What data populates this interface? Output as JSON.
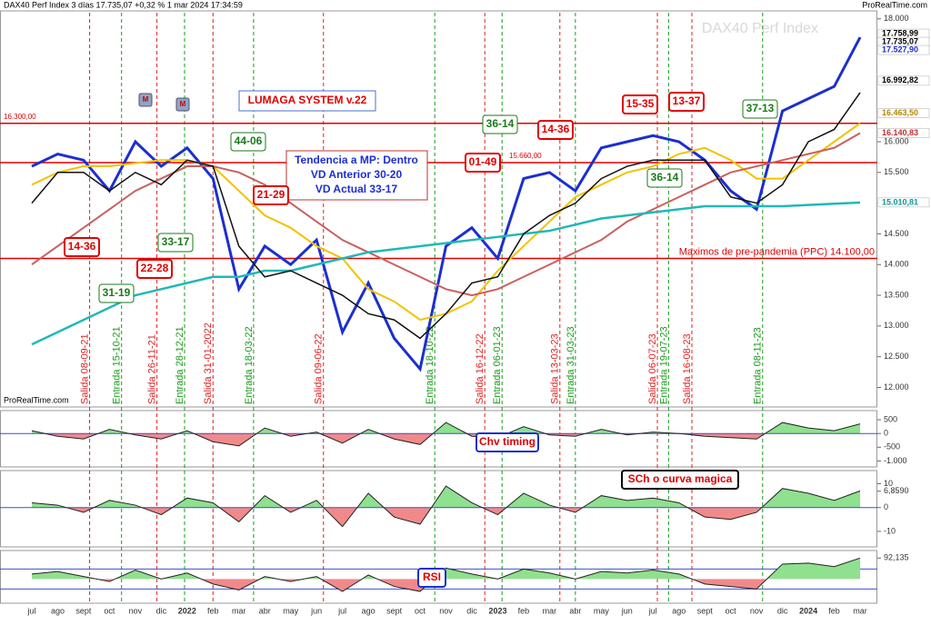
{
  "header": {
    "title": "DAX40 Perf Index 3 días 17.735,07 +0,32 % 1 mar 2024 17:34:59",
    "brand": "ProRealTime.com",
    "watermark": "DAX40 Perf Index",
    "footer_brand": "ProRealTime.com"
  },
  "chart_data": [
    {
      "type": "line",
      "categories": [
        "jul",
        "ago",
        "sept",
        "oct",
        "nov",
        "dic",
        "2022",
        "feb",
        "mar",
        "abr",
        "may",
        "jun",
        "jul",
        "ago",
        "sept",
        "oct",
        "nov",
        "dic",
        "2023",
        "feb",
        "mar",
        "abr",
        "may",
        "jun",
        "jul",
        "ago",
        "sept",
        "oct",
        "nov",
        "dic",
        "2024",
        "feb",
        "mar"
      ],
      "series": [
        {
          "color": "#1c2fd0",
          "values": [
            15600,
            15800,
            15700,
            15200,
            16000,
            15600,
            15900,
            15400,
            13600,
            14300,
            14000,
            14400,
            12900,
            13700,
            12800,
            12300,
            14300,
            14600,
            14100,
            15400,
            15500,
            15200,
            15900,
            16000,
            16100,
            16000,
            15700,
            15200,
            14900,
            16500,
            16700,
            16900,
            17700
          ]
        },
        {
          "color": "#f2c200",
          "values": [
            15300,
            15500,
            15600,
            15600,
            15650,
            15700,
            15700,
            15600,
            15200,
            14800,
            14600,
            14300,
            14100,
            13600,
            13400,
            13100,
            13200,
            13400,
            13900,
            14300,
            14700,
            15100,
            15300,
            15500,
            15600,
            15800,
            15900,
            15700,
            15400,
            15400,
            15700,
            16000,
            16300
          ]
        },
        {
          "color": "#c86060",
          "values": [
            14000,
            14300,
            14600,
            14900,
            15200,
            15400,
            15600,
            15600,
            15500,
            15300,
            15000,
            14700,
            14400,
            14200,
            14000,
            13800,
            13600,
            13500,
            13600,
            13800,
            14000,
            14200,
            14400,
            14700,
            14900,
            15100,
            15300,
            15500,
            15600,
            15700,
            15800,
            15900,
            16140
          ]
        },
        {
          "color": "#20b8b8",
          "values": [
            12700,
            12900,
            13100,
            13300,
            13500,
            13600,
            13700,
            13800,
            13800,
            13900,
            13900,
            14000,
            14100,
            14200,
            14250,
            14300,
            14350,
            14400,
            14450,
            14500,
            14550,
            14650,
            14750,
            14800,
            14850,
            14900,
            14950,
            14950,
            14950,
            14950,
            14970,
            14990,
            15010
          ]
        },
        {
          "color": "#111111",
          "values": [
            15000,
            15500,
            15500,
            15200,
            15500,
            15300,
            15700,
            15600,
            14300,
            13800,
            13900,
            13700,
            13500,
            13200,
            13100,
            12800,
            13200,
            13700,
            13800,
            14500,
            14800,
            15000,
            15400,
            15600,
            15700,
            15700,
            15700,
            15100,
            15000,
            15300,
            16000,
            16200,
            16800
          ]
        }
      ],
      "ylim": [
        11800,
        18100
      ],
      "yticks": [
        {
          "value": 18000,
          "label": "18.000"
        },
        {
          "value": 16000,
          "label": "16.000"
        },
        {
          "value": 15500,
          "label": "15.500"
        },
        {
          "value": 14500,
          "label": "14.500"
        },
        {
          "value": 14000,
          "label": "14.000"
        },
        {
          "value": 13500,
          "label": "13.500"
        },
        {
          "value": 13000,
          "label": "13.000"
        },
        {
          "value": 12500,
          "label": "12.500"
        },
        {
          "value": 12000,
          "label": "12.000"
        }
      ],
      "price_tags": [
        {
          "value": 17758.99,
          "label": "17.758,99",
          "color": "#000000"
        },
        {
          "value": 17735.07,
          "label": "17.735,07",
          "color": "#000000"
        },
        {
          "value": 17527.9,
          "label": "17.527,90",
          "color": "#1c2fd0"
        },
        {
          "value": 16992.82,
          "label": "16.992,82",
          "color": "#000000"
        },
        {
          "value": 16463.5,
          "label": "16.463,50",
          "color": "#b08a00"
        },
        {
          "value": 16140.83,
          "label": "16.140,83",
          "color": "#c03030"
        },
        {
          "value": 15010.81,
          "label": "15.010,81",
          "color": "#109898"
        }
      ],
      "hlines": [
        {
          "value": 16300,
          "label": "16.300,00"
        },
        {
          "value": 15660,
          "label": "15.660,00"
        },
        {
          "value": 14100,
          "label": "Maximos de pre-pandemia (PPC) 14.100,00"
        }
      ],
      "annotations": {
        "system": "LUMAGA SYSTEM v.22",
        "status": [
          "Tendencia a MP: Dentro",
          "VD Anterior 30-20",
          "VD Actual 33-17"
        ]
      },
      "markers": [
        "M",
        "M"
      ],
      "signals": [
        {
          "label": "14-36",
          "color": "#e00000"
        },
        {
          "label": "31-19",
          "color": "#1a7a1a"
        },
        {
          "label": "22-28",
          "color": "#e00000"
        },
        {
          "label": "33-17",
          "color": "#1a7a1a"
        },
        {
          "label": "44-06",
          "color": "#1a7a1a"
        },
        {
          "label": "21-29",
          "color": "#e00000"
        },
        {
          "label": "01-49",
          "color": "#e00000"
        },
        {
          "label": "36-14",
          "color": "#1a7a1a"
        },
        {
          "label": "14-36",
          "color": "#e00000"
        },
        {
          "label": "15-35",
          "color": "#e00000"
        },
        {
          "label": "13-37",
          "color": "#e00000"
        },
        {
          "label": "36-14",
          "color": "#1a7a1a"
        },
        {
          "label": "37-13",
          "color": "#1a7a1a"
        }
      ],
      "events": [
        {
          "label": "Salida 08-09-21",
          "color": "#e02020"
        },
        {
          "label": "Entrada 15-10-21",
          "color": "#1a9a1a"
        },
        {
          "label": "Salida 26-11-21",
          "color": "#e02020"
        },
        {
          "label": "Entrada 28-12-21",
          "color": "#1a9a1a"
        },
        {
          "label": "Salida 31-01-2022",
          "color": "#e02020"
        },
        {
          "label": "Entrada 18-03-22",
          "color": "#1a9a1a"
        },
        {
          "label": "Salida 09-06-22",
          "color": "#e02020"
        },
        {
          "label": "Entrada 18-10-22",
          "color": "#1a9a1a"
        },
        {
          "label": "Salida 16-12-22",
          "color": "#e02020"
        },
        {
          "label": "Entrada 06-01-23",
          "color": "#1a9a1a"
        },
        {
          "label": "Salida 13-03-23",
          "color": "#e02020"
        },
        {
          "label": "Entrada 31-03-23",
          "color": "#1a9a1a"
        },
        {
          "label": "Salida 06-07-23",
          "color": "#e02020"
        },
        {
          "label": "Entrada 19-07-23",
          "color": "#1a9a1a"
        },
        {
          "label": "Salida 16-08-23",
          "color": "#e02020"
        },
        {
          "label": "Entrada 08-11-23",
          "color": "#1a9a1a"
        }
      ]
    },
    {
      "type": "area",
      "title": "Chv timing",
      "title_color": "#e00000",
      "box_color": "#1c2fd0",
      "pos_color": "#8fe08f",
      "neg_color": "#f08a8a",
      "values": [
        100,
        -100,
        -200,
        150,
        -50,
        -200,
        100,
        -300,
        -450,
        200,
        -100,
        50,
        -350,
        150,
        -200,
        -400,
        400,
        -100,
        -150,
        250,
        -50,
        -100,
        150,
        -50,
        50,
        0,
        -100,
        -150,
        -200,
        400,
        200,
        100,
        350
      ],
      "ylim": [
        -1150,
        700
      ],
      "yticks": [
        500,
        0,
        -500,
        {
          "value": -1000,
          "label": "-1.000"
        }
      ]
    },
    {
      "type": "area",
      "title": "SCh o curva magica",
      "title_color": "#e00000",
      "box_color": "#000000",
      "pos_color": "#8fe08f",
      "neg_color": "#f08a8a",
      "values": [
        2,
        1,
        -2,
        3,
        1,
        -3,
        4,
        2,
        -6,
        5,
        -2,
        3,
        -8,
        6,
        -4,
        -7,
        9,
        2,
        -3,
        6,
        1,
        -2,
        5,
        3,
        4,
        2,
        -4,
        -5,
        -2,
        8,
        6,
        3,
        7
      ],
      "ylim": [
        -15,
        14
      ],
      "yticks": [
        10,
        {
          "value": 6.859,
          "label": "6,8590"
        },
        0,
        -10
      ]
    },
    {
      "type": "area",
      "title": "RSI",
      "title_color": "#e00000",
      "box_color": "#1c2fd0",
      "pos_color": "#8fe08f",
      "neg_color": "#f08a8a",
      "values": [
        60,
        65,
        55,
        45,
        68,
        50,
        62,
        40,
        28,
        55,
        45,
        55,
        25,
        58,
        35,
        25,
        72,
        60,
        50,
        70,
        62,
        50,
        65,
        62,
        68,
        60,
        40,
        35,
        30,
        80,
        82,
        75,
        92.135
      ],
      "ylim": [
        5,
        100
      ],
      "yticks": [
        {
          "value": 92.135,
          "label": "92,135"
        }
      ],
      "hlines": [
        70,
        30
      ]
    }
  ]
}
